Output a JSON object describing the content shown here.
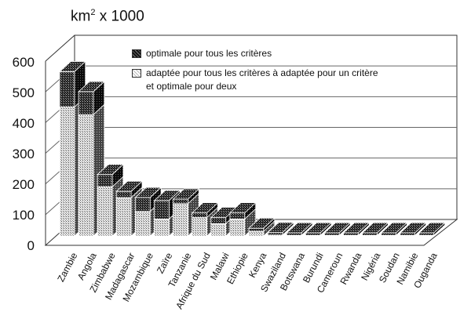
{
  "chart_data": {
    "type": "bar",
    "stacked": true,
    "style": "3d",
    "title": "km2 x 1000",
    "ylabel": "km2 x 1000",
    "xlabel": "",
    "ylim": [
      0,
      600
    ],
    "yticks": [
      "0",
      "100",
      "200",
      "300",
      "400",
      "500",
      "600"
    ],
    "grid": true,
    "legend_position": "top-right inside plot",
    "categories": [
      "Zambie",
      "Angola",
      "Zimbabwe",
      "Madagascar",
      "Mozambique",
      "Zaïre",
      "Tanzanie",
      "Afrique du Sud",
      "Malawi",
      "Ethiopie",
      "Kenya",
      "Swaziland",
      "Botswana",
      "Burundi",
      "Cameroun",
      "Rwanda",
      "Nigéria",
      "Soudan",
      "Namibie",
      "Ouganda"
    ],
    "series": [
      {
        "name": "adaptée pour tous les critères à adaptée pour un critère et optimale pour deux",
        "pattern": "light",
        "values": [
          420,
          395,
          160,
          125,
          80,
          55,
          105,
          60,
          40,
          55,
          15,
          3,
          2,
          2,
          2,
          2,
          2,
          2,
          2,
          2
        ]
      },
      {
        "name": "optimale pour tous les critères",
        "pattern": "dark",
        "values": [
          115,
          75,
          40,
          20,
          45,
          60,
          15,
          15,
          20,
          20,
          10,
          8,
          8,
          8,
          8,
          8,
          8,
          8,
          8,
          8
        ]
      }
    ]
  },
  "title": {
    "main": "km",
    "sup": "2",
    "rest": " x 1000"
  },
  "legend": {
    "item1": "optimale pour tous les critères",
    "item2_line1": "adaptée pour tous les critères à adaptée pour un critère",
    "item2_line2": "et optimale pour deux"
  },
  "yaxis": {
    "ticks": [
      "600",
      "500",
      "400",
      "300",
      "200",
      "100",
      "0"
    ]
  },
  "xaxis": {
    "labels": [
      "Zambie",
      "Angola",
      "Zimbabwe",
      "Madagascar",
      "Mozambique",
      "Zaïre",
      "Tanzanie",
      "Afrique du Sud",
      "Malawi",
      "Ethiopie",
      "Kenya",
      "Swaziland",
      "Botswana",
      "Burundi",
      "Cameroun",
      "Rwanda",
      "Nigéria",
      "Soudan",
      "Namibie",
      "Ouganda"
    ]
  }
}
